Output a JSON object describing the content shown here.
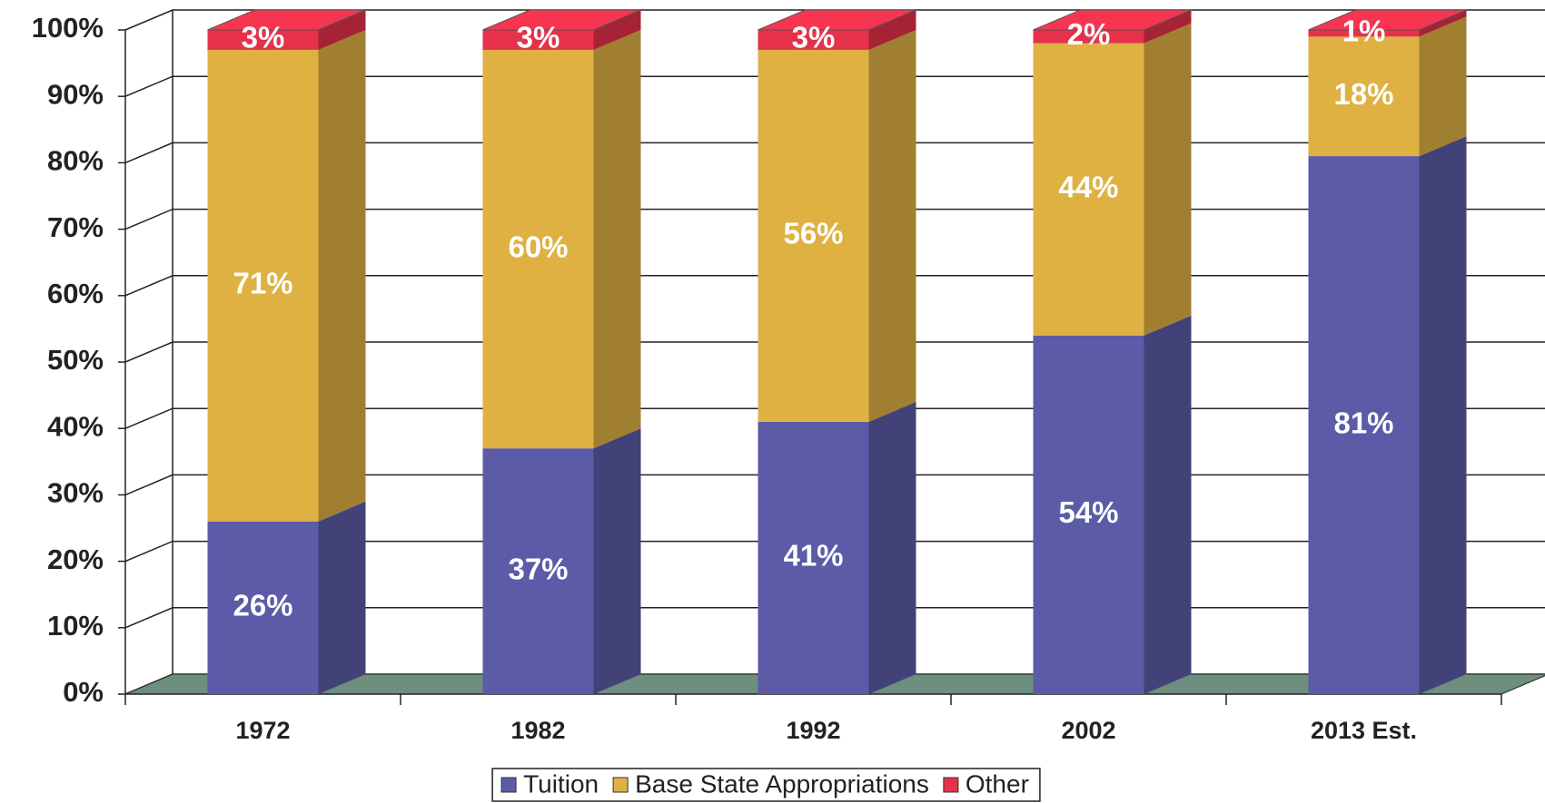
{
  "chart_data": {
    "type": "bar3d_stacked",
    "categories": [
      "1972",
      "1982",
      "1992",
      "2002",
      "2013 Est."
    ],
    "series": [
      {
        "name": "Tuition",
        "color": "#5b5ba8",
        "values": [
          26,
          37,
          41,
          54,
          81
        ],
        "value_labels": [
          "26%",
          "37%",
          "41%",
          "54%",
          "81%"
        ]
      },
      {
        "name": "Base State Appropriations",
        "color": "#dfb143",
        "values": [
          71,
          60,
          56,
          44,
          18
        ],
        "value_labels": [
          "71%",
          "60%",
          "56%",
          "44%",
          "18%"
        ]
      },
      {
        "name": "Other",
        "color": "#e6314b",
        "values": [
          3,
          3,
          3,
          2,
          1
        ],
        "value_labels": [
          "3%",
          "3%",
          "3%",
          "2%",
          "1%"
        ]
      }
    ],
    "ylim": [
      0,
      100
    ],
    "yticks": [
      {
        "value": 0,
        "label": "0%"
      },
      {
        "value": 10,
        "label": "10%"
      },
      {
        "value": 20,
        "label": "20%"
      },
      {
        "value": 30,
        "label": "30%"
      },
      {
        "value": 40,
        "label": "40%"
      },
      {
        "value": 50,
        "label": "50%"
      },
      {
        "value": 60,
        "label": "60%"
      },
      {
        "value": 70,
        "label": "70%"
      },
      {
        "value": 80,
        "label": "80%"
      },
      {
        "value": 90,
        "label": "90%"
      },
      {
        "value": 100,
        "label": "100%"
      }
    ],
    "grid": true,
    "legend": "bottom"
  }
}
